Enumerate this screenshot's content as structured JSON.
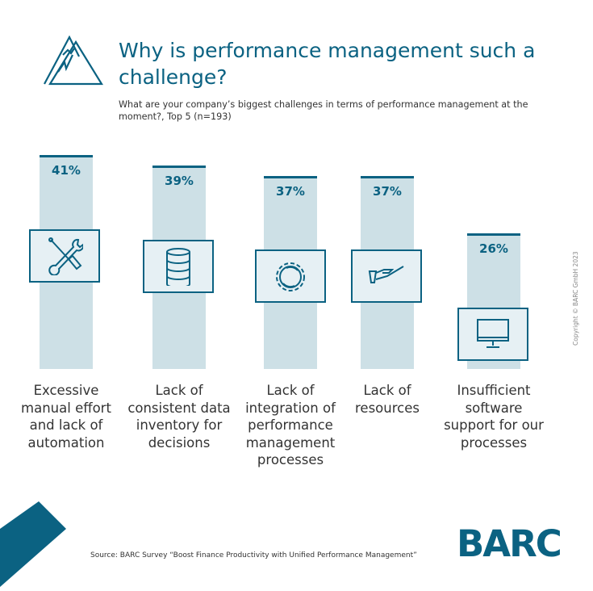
{
  "header": {
    "title": "Why is performance management such a challenge?",
    "subtitle": "What are your company’s biggest challenges in terms of performance management at the moment?, Top 5 (n=193)",
    "icon": "mountain-icon"
  },
  "chart_data": {
    "type": "bar",
    "categories": [
      "Excessive manual effort and lack of automation",
      "Lack of consistent data inventory for decisions",
      "Lack of integration of performance management processes",
      "Lack of resources",
      "Insufficient software support for our processes"
    ],
    "values": [
      41,
      39,
      37,
      37,
      26
    ],
    "value_labels": [
      "41%",
      "39%",
      "37%",
      "37%",
      "26%"
    ],
    "icons": [
      "tools-icon",
      "database-icon",
      "gear-sync-icon",
      "hand-icon",
      "monitor-icon"
    ],
    "ylim": [
      0,
      41
    ],
    "grid": false,
    "colors": {
      "bar": "#cde0e6",
      "accent": "#0b6282"
    }
  },
  "footer": {
    "source": "Source: BARC Survey “Boost Finance Productivity with Unified Performance Management”",
    "copyright": "Copyright © BARC GmbH 2023",
    "logo": "BARC"
  }
}
